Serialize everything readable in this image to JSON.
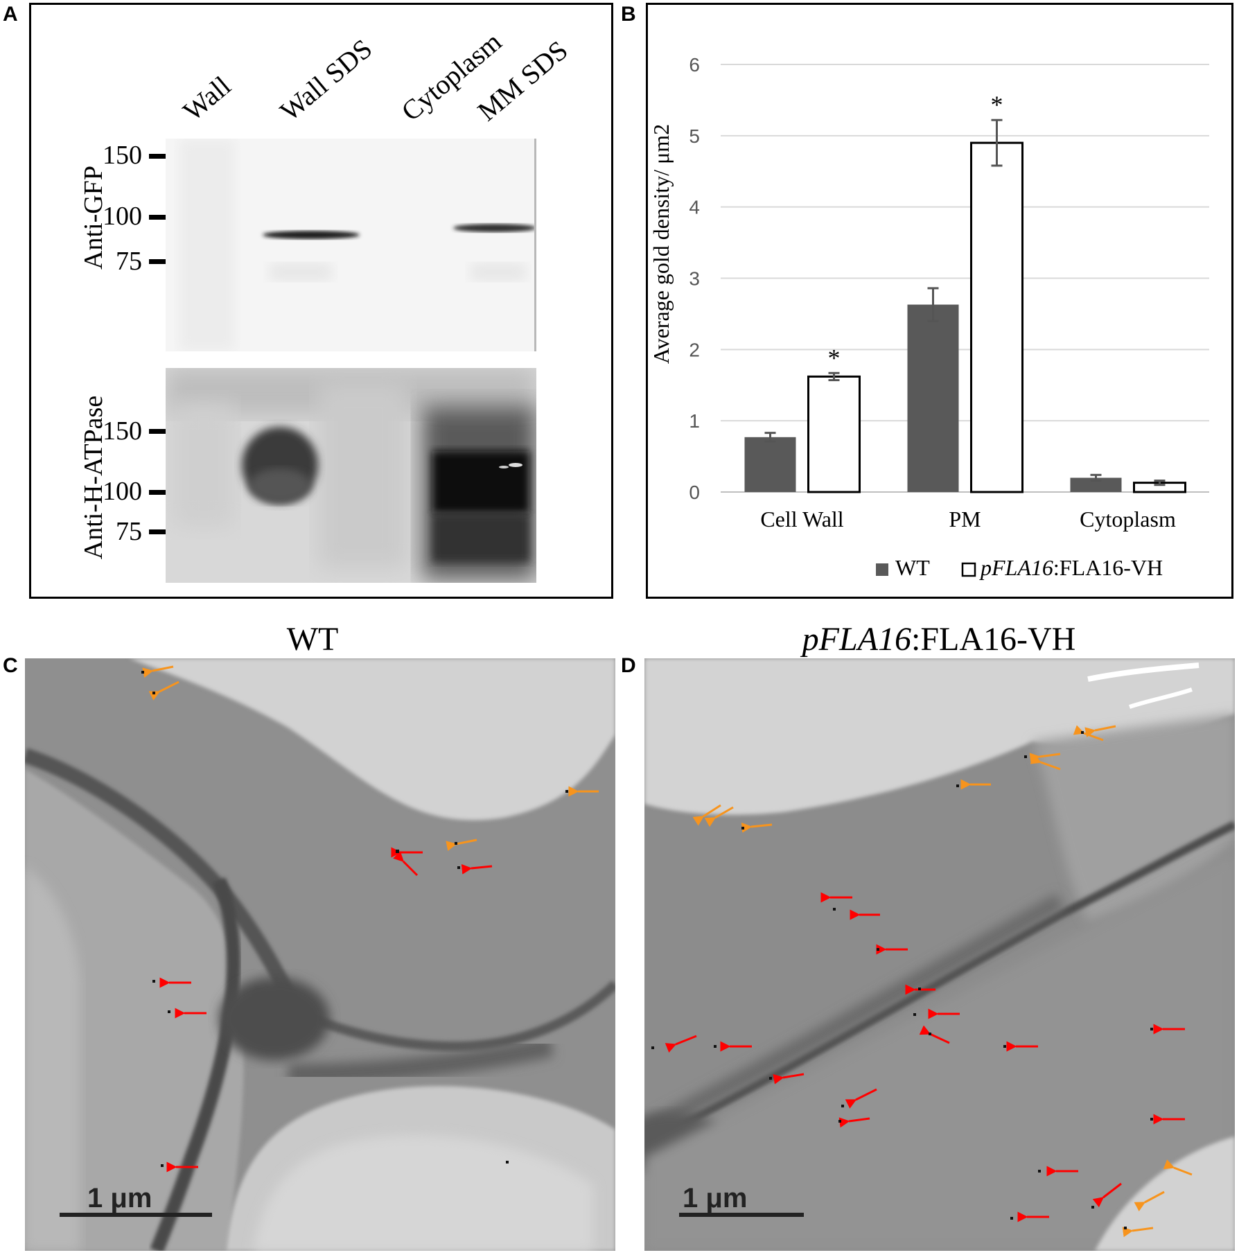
{
  "panels": {
    "A": "A",
    "B": "B",
    "C": "C",
    "D": "D"
  },
  "panelA": {
    "lanes": [
      "Wall",
      "Wall SDS",
      "Cytoplasm",
      "MM SDS"
    ],
    "gfp_label": "Anti-GFP",
    "atpase_label": "Anti-H-ATPase",
    "gfp_markers": [
      "150",
      "100",
      "75"
    ],
    "atpase_markers": [
      "150",
      "100",
      "75"
    ]
  },
  "chart_data": {
    "type": "bar",
    "categories": [
      "Cell Wall",
      "PM",
      "Cytoplasm"
    ],
    "series": [
      {
        "name": "WT",
        "values": [
          0.77,
          2.63,
          0.2
        ],
        "errors": [
          0.06,
          0.23,
          0.04
        ],
        "color": "#595959"
      },
      {
        "name": "pFLA16:FLA16-VH",
        "values": [
          1.62,
          4.9,
          0.13
        ],
        "errors": [
          0.05,
          0.32,
          0.03
        ],
        "color": "#ffffff"
      }
    ],
    "significance": [
      "*",
      "*",
      ""
    ],
    "ylabel": "Average gold density/ μm2",
    "ylim": [
      0,
      6
    ],
    "yticks": [
      "0",
      "1",
      "2",
      "3",
      "4",
      "5",
      "6"
    ],
    "grid": true,
    "legend_position": "bottom-right",
    "legend": {
      "wt": "WT",
      "transgenic_prefix": "pFLA16",
      "transgenic_suffix": ":FLA16-VH"
    }
  },
  "panelC": {
    "title": "WT",
    "scalebar": "1 μm"
  },
  "panelD": {
    "title_prefix": "pFLA16",
    "title_suffix": ":FLA16-VH",
    "scalebar": "1 μm"
  },
  "colors": {
    "wt_bar": "#595959",
    "gridline": "#d9d9d9",
    "arrow_cell_wall": "#ff0000",
    "arrow_membrane": "#f7941d"
  }
}
